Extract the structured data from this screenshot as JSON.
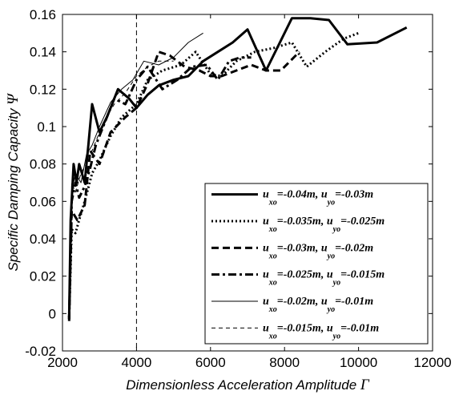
{
  "chart_data": {
    "type": "line",
    "xlabel": "Dimensionless Acceleration Amplitude",
    "xlabel_symbol": "Γ",
    "ylabel": "Specific Damping Capacity",
    "ylabel_symbol": "Ψ",
    "xlim": [
      2000,
      12000
    ],
    "ylim": [
      -0.02,
      0.16
    ],
    "xticks": [
      2000,
      4000,
      6000,
      8000,
      10000,
      12000
    ],
    "xtick_labels": [
      "2000",
      "4000",
      "6000",
      "8000",
      "10000",
      "12000"
    ],
    "yticks": [
      -0.02,
      0,
      0.02,
      0.04,
      0.06,
      0.08,
      0.1,
      0.12,
      0.14,
      0.16
    ],
    "ytick_labels": [
      "-0.02",
      "0",
      "0.02",
      "0.04",
      "0.06",
      "0.08",
      "0.1",
      "0.12",
      "0.14",
      "0.16"
    ],
    "grid": false,
    "legend_position": "bottom-right",
    "reference_line": {
      "x": 4000,
      "style": "dashed"
    },
    "series": [
      {
        "name": "u_xo=-0.04m, u_yo=-0.03m",
        "label_parts": [
          "u",
          "xo",
          "=-0.04m, u",
          "yo",
          "=-0.03m"
        ],
        "style": "solid",
        "width": 3,
        "points": [
          [
            2180,
            -0.003
          ],
          [
            2220,
            0.05
          ],
          [
            2300,
            0.08
          ],
          [
            2380,
            0.07
          ],
          [
            2450,
            0.08
          ],
          [
            2600,
            0.07
          ],
          [
            2700,
            0.09
          ],
          [
            2800,
            0.112
          ],
          [
            3000,
            0.097
          ],
          [
            3200,
            0.105
          ],
          [
            3500,
            0.12
          ],
          [
            3800,
            0.115
          ],
          [
            4000,
            0.11
          ],
          [
            4300,
            0.117
          ],
          [
            4600,
            0.122
          ],
          [
            5000,
            0.125
          ],
          [
            5400,
            0.127
          ],
          [
            5800,
            0.135
          ],
          [
            6200,
            0.14
          ],
          [
            6600,
            0.145
          ],
          [
            7000,
            0.152
          ],
          [
            7500,
            0.13
          ],
          [
            8200,
            0.158
          ],
          [
            8700,
            0.158
          ],
          [
            9200,
            0.157
          ],
          [
            9700,
            0.144
          ],
          [
            10500,
            0.145
          ],
          [
            11300,
            0.153
          ]
        ]
      },
      {
        "name": "u_xo=-0.035m, u_yo=-0.025m",
        "label_parts": [
          "u",
          "xo",
          "=-0.035m, u",
          "yo",
          "=-0.025m"
        ],
        "style": "dotted",
        "width": 3,
        "points": [
          [
            2180,
            -0.002
          ],
          [
            2250,
            0.045
          ],
          [
            2350,
            0.043
          ],
          [
            2450,
            0.05
          ],
          [
            2600,
            0.06
          ],
          [
            2800,
            0.075
          ],
          [
            3000,
            0.082
          ],
          [
            3300,
            0.095
          ],
          [
            3600,
            0.105
          ],
          [
            4000,
            0.112
          ],
          [
            4300,
            0.125
          ],
          [
            4700,
            0.13
          ],
          [
            5200,
            0.133
          ],
          [
            5600,
            0.14
          ],
          [
            6000,
            0.128
          ],
          [
            6300,
            0.127
          ],
          [
            6700,
            0.135
          ],
          [
            7200,
            0.14
          ],
          [
            7700,
            0.142
          ],
          [
            8200,
            0.145
          ],
          [
            8600,
            0.132
          ],
          [
            9100,
            0.14
          ],
          [
            9600,
            0.147
          ],
          [
            10000,
            0.15
          ]
        ]
      },
      {
        "name": "u_xo=-0.03m, u_yo=-0.02m",
        "label_parts": [
          "u",
          "xo",
          "=-0.03m, u",
          "yo",
          "=-0.02m"
        ],
        "style": "dashed",
        "width": 3,
        "points": [
          [
            2180,
            -0.003
          ],
          [
            2250,
            0.055
          ],
          [
            2400,
            0.05
          ],
          [
            2600,
            0.058
          ],
          [
            2750,
            0.087
          ],
          [
            3000,
            0.08
          ],
          [
            3300,
            0.097
          ],
          [
            3700,
            0.105
          ],
          [
            4000,
            0.11
          ],
          [
            4300,
            0.123
          ],
          [
            4600,
            0.14
          ],
          [
            4900,
            0.138
          ],
          [
            5300,
            0.132
          ],
          [
            5700,
            0.13
          ],
          [
            6000,
            0.127
          ],
          [
            6300,
            0.127
          ],
          [
            6700,
            0.13
          ],
          [
            7100,
            0.133
          ],
          [
            7500,
            0.13
          ],
          [
            7900,
            0.13
          ],
          [
            8400,
            0.14
          ]
        ]
      },
      {
        "name": "u_xo=-0.025m, u_yo=-0.015m",
        "label_parts": [
          "u",
          "xo",
          "=-0.025m, u",
          "yo",
          "=-0.015m"
        ],
        "style": "dashdot",
        "width": 3,
        "points": [
          [
            2180,
            -0.004
          ],
          [
            2250,
            0.06
          ],
          [
            2350,
            0.07
          ],
          [
            2450,
            0.062
          ],
          [
            2600,
            0.068
          ],
          [
            2750,
            0.078
          ],
          [
            2900,
            0.09
          ],
          [
            3100,
            0.1
          ],
          [
            3400,
            0.115
          ],
          [
            3700,
            0.112
          ],
          [
            4000,
            0.125
          ],
          [
            4300,
            0.132
          ],
          [
            4700,
            0.12
          ],
          [
            5100,
            0.125
          ],
          [
            5500,
            0.132
          ],
          [
            5900,
            0.133
          ],
          [
            6200,
            0.125
          ],
          [
            6500,
            0.135
          ],
          [
            6800,
            0.137
          ],
          [
            7100,
            0.137
          ]
        ]
      },
      {
        "name": "u_xo=-0.02m, u_yo=-0.01m",
        "label_parts": [
          "u",
          "xo",
          "=-0.02m, u",
          "yo",
          "=-0.01m"
        ],
        "style": "solid",
        "width": 1,
        "points": [
          [
            2180,
            -0.001
          ],
          [
            2250,
            0.065
          ],
          [
            2350,
            0.075
          ],
          [
            2500,
            0.07
          ],
          [
            2650,
            0.085
          ],
          [
            2800,
            0.09
          ],
          [
            3000,
            0.1
          ],
          [
            3300,
            0.113
          ],
          [
            3600,
            0.12
          ],
          [
            3900,
            0.125
          ],
          [
            4200,
            0.135
          ],
          [
            4600,
            0.133
          ],
          [
            5000,
            0.137
          ],
          [
            5400,
            0.145
          ],
          [
            5800,
            0.15
          ]
        ]
      },
      {
        "name": "u_xo=-0.015m, u_yo=-0.01m",
        "label_parts": [
          "u",
          "xo",
          "=-0.015m, u",
          "yo",
          "=-0.01m"
        ],
        "style": "dashed",
        "width": 1,
        "points": [
          [
            2180,
            -0.002
          ],
          [
            2250,
            0.07
          ],
          [
            2350,
            0.065
          ],
          [
            2500,
            0.075
          ],
          [
            2700,
            0.082
          ],
          [
            2900,
            0.092
          ],
          [
            3100,
            0.102
          ],
          [
            3400,
            0.112
          ],
          [
            3700,
            0.118
          ],
          [
            4000,
            0.127
          ],
          [
            4300,
            0.132
          ],
          [
            4600,
            0.135
          ],
          [
            5000,
            0.135
          ]
        ]
      }
    ]
  }
}
